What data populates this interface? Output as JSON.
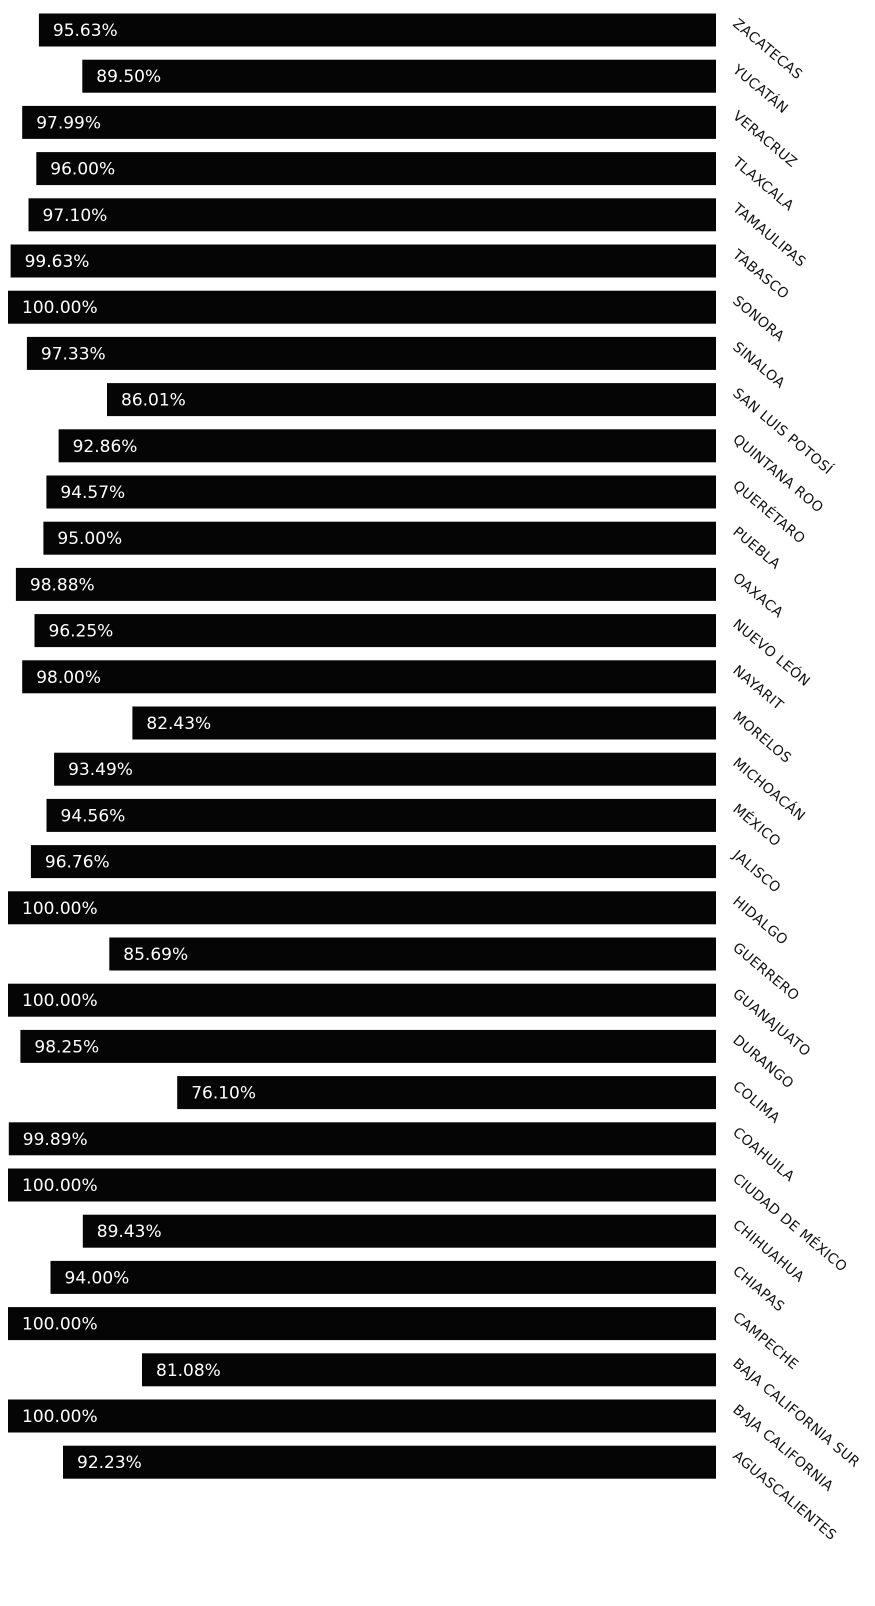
{
  "chart_data": {
    "type": "bar",
    "orientation": "horizontal",
    "value_axis_direction": "right-to-left",
    "label_rotation": "rotated, reading downward to the right",
    "xlim": [
      0,
      100
    ],
    "bar_color": "#050505",
    "label_color": "#ffffff",
    "background": "#ffffff",
    "categories": [
      "ZACATECAS",
      "YUCATÁN",
      "VERACRUZ",
      "TLAXCALA",
      "TAMAULIPAS",
      "TABASCO",
      "SONORA",
      "SINALOA",
      "SAN LUIS POTOSÍ",
      "QUINTANA ROO",
      "QUERÉTARO",
      "PUEBLA",
      "OAXACA",
      "NUEVO LEÓN",
      "NAYARIT",
      "MORELOS",
      "MICHOACÁN",
      "MÉXICO",
      "JALISCO",
      "HIDALGO",
      "GUERRERO",
      "GUANAJUATO",
      "DURANGO",
      "COLIMA",
      "COAHUILA",
      "CIUDAD DE MÉXICO",
      "CHIHUAHUA",
      "CHIAPAS",
      "CAMPECHE",
      "BAJA CALIFORNIA SUR",
      "BAJA CALIFORNIA",
      "AGUASCALIENTES"
    ],
    "values": [
      95.63,
      89.5,
      97.99,
      96.0,
      97.1,
      99.63,
      100.0,
      97.33,
      86.01,
      92.86,
      94.57,
      95.0,
      98.88,
      96.25,
      98.0,
      82.43,
      93.49,
      94.56,
      96.76,
      100.0,
      85.69,
      100.0,
      98.25,
      76.1,
      99.89,
      100.0,
      89.43,
      94.0,
      100.0,
      81.08,
      100.0,
      92.23
    ],
    "data_labels": [
      "95.63%",
      "89.50%",
      "97.99%",
      "96.00%",
      "97.10%",
      "99.63%",
      "100.00%",
      "97.33%",
      "86.01%",
      "92.86%",
      "94.57%",
      "95.00%",
      "98.88%",
      "96.25%",
      "98.00%",
      "82.43%",
      "93.49%",
      "94.56%",
      "96.76%",
      "100.00%",
      "85.69%",
      "100.00%",
      "98.25%",
      "76.10%",
      "99.89%",
      "100.00%",
      "89.43%",
      "94.00%",
      "100.00%",
      "81.08%",
      "100.00%",
      "92.23%"
    ]
  }
}
